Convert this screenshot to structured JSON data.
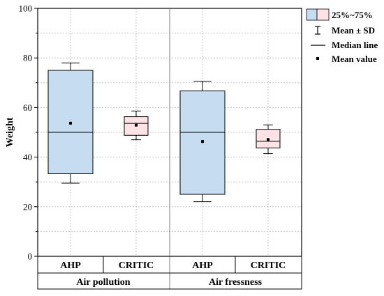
{
  "chart_data": {
    "type": "box",
    "ylabel": "Weight",
    "ylim": [
      0,
      100
    ],
    "y_ticks": [
      0,
      20,
      40,
      60,
      80,
      100
    ],
    "grid": true,
    "legend_placement": "top-right",
    "groups": [
      "Air pollution",
      "Air fressness"
    ],
    "boxes": [
      {
        "group": "Air pollution",
        "method": "AHP",
        "q1": 33.3,
        "median": 50,
        "q3": 75,
        "mean": 53.7,
        "sd_low": 29.5,
        "sd_high": 78,
        "color": "#c6dcf0"
      },
      {
        "group": "Air pollution",
        "method": "CRITIC",
        "q1": 48.8,
        "median": 53.6,
        "q3": 56.3,
        "mean": 52.9,
        "sd_low": 47,
        "sd_high": 58.6,
        "color": "#fde2e6"
      },
      {
        "group": "Air fressness",
        "method": "AHP",
        "q1": 25,
        "median": 50,
        "q3": 66.7,
        "mean": 46.3,
        "sd_low": 22,
        "sd_high": 70.6,
        "color": "#c6dcf0"
      },
      {
        "group": "Air fressness",
        "method": "CRITIC",
        "q1": 43.7,
        "median": 46.4,
        "q3": 51.2,
        "mean": 47.1,
        "sd_low": 41.4,
        "sd_high": 53,
        "color": "#fde2e6"
      }
    ],
    "legend": {
      "box": "25%~75%",
      "whisker": "Mean ± SD",
      "median": "Median line",
      "mean": "Mean value"
    }
  }
}
